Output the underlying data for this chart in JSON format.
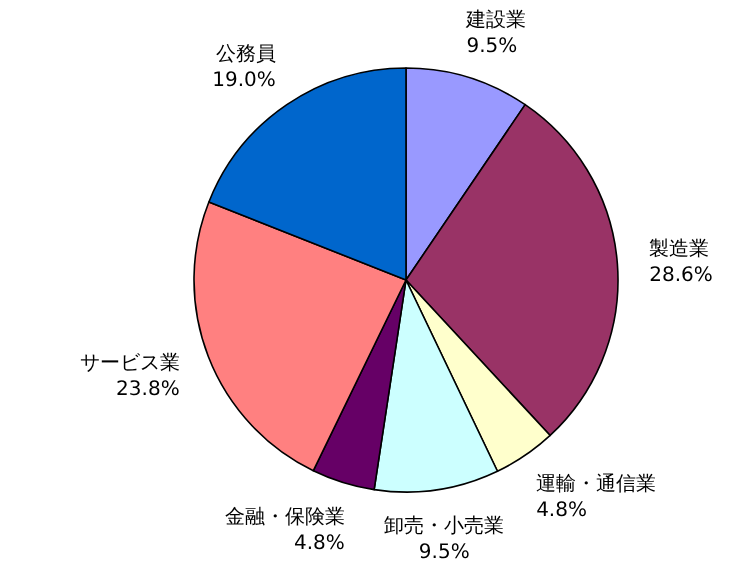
{
  "chart_data": {
    "type": "pie",
    "categories": [
      "建設業",
      "製造業",
      "運輸・通信業",
      "卸売・小売業",
      "金融・保険業",
      "サービス業",
      "公務員"
    ],
    "values": [
      9.5,
      28.6,
      4.8,
      9.5,
      4.8,
      23.8,
      19.0
    ],
    "value_labels": [
      "9.5%",
      "28.6%",
      "4.8%",
      "9.5%",
      "4.8%",
      "23.8%",
      "19.0%"
    ],
    "colors": [
      "#9999ff",
      "#993366",
      "#ffffcc",
      "#ccffff",
      "#660066",
      "#ff8080",
      "#0066cc"
    ]
  }
}
